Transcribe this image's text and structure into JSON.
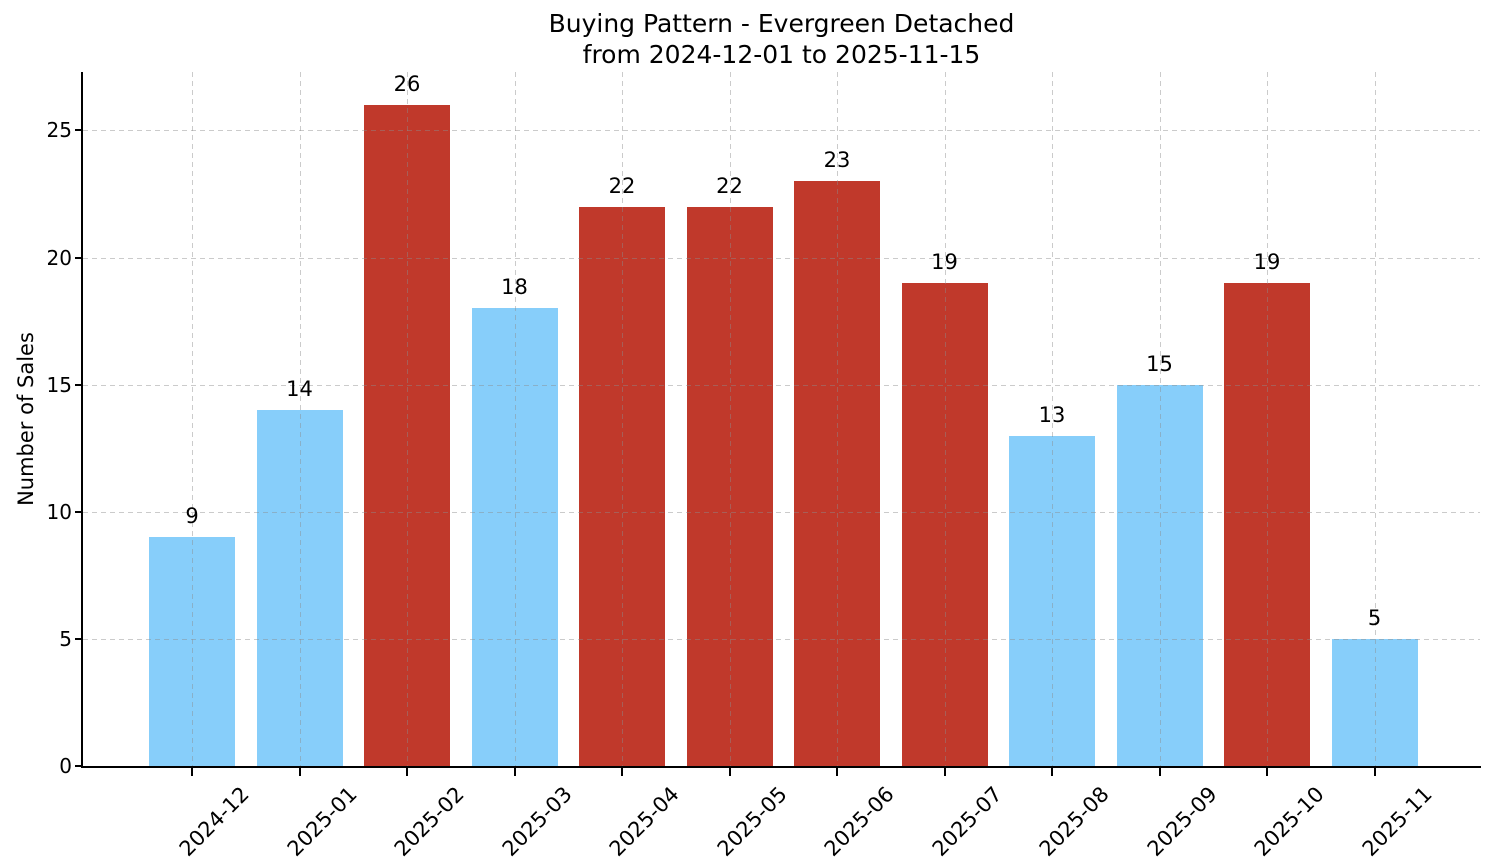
{
  "chart_data": {
    "type": "bar",
    "title": "Buying Pattern - Evergreen Detached",
    "subtitle": "from 2024-12-01 to 2025-11-15",
    "xlabel": "",
    "ylabel": "Number of Sales",
    "categories": [
      "2024-12",
      "2025-01",
      "2025-02",
      "2025-03",
      "2025-04",
      "2025-05",
      "2025-06",
      "2025-07",
      "2025-08",
      "2025-09",
      "2025-10",
      "2025-11"
    ],
    "values": [
      9,
      14,
      26,
      18,
      22,
      22,
      23,
      19,
      13,
      15,
      19,
      5
    ],
    "bar_colors": [
      "#87CEFA",
      "#87CEFA",
      "#C0392B",
      "#87CEFA",
      "#C0392B",
      "#C0392B",
      "#C0392B",
      "#C0392B",
      "#87CEFA",
      "#87CEFA",
      "#C0392B",
      "#87CEFA"
    ],
    "show_value_labels": true,
    "yticks": [
      0,
      5,
      10,
      15,
      20,
      25
    ],
    "ylim": [
      0,
      27.3
    ],
    "grid": {
      "visible": true,
      "style": "dashed",
      "axes": "both",
      "drawn_over_bars": true
    },
    "legend": "none",
    "colors": {
      "bar_blue": "#87CEFA",
      "bar_red": "#C0392B",
      "grid": "rgba(140,140,140,0.45)",
      "axis": "#000000",
      "text": "#000000",
      "background": "#ffffff"
    }
  }
}
